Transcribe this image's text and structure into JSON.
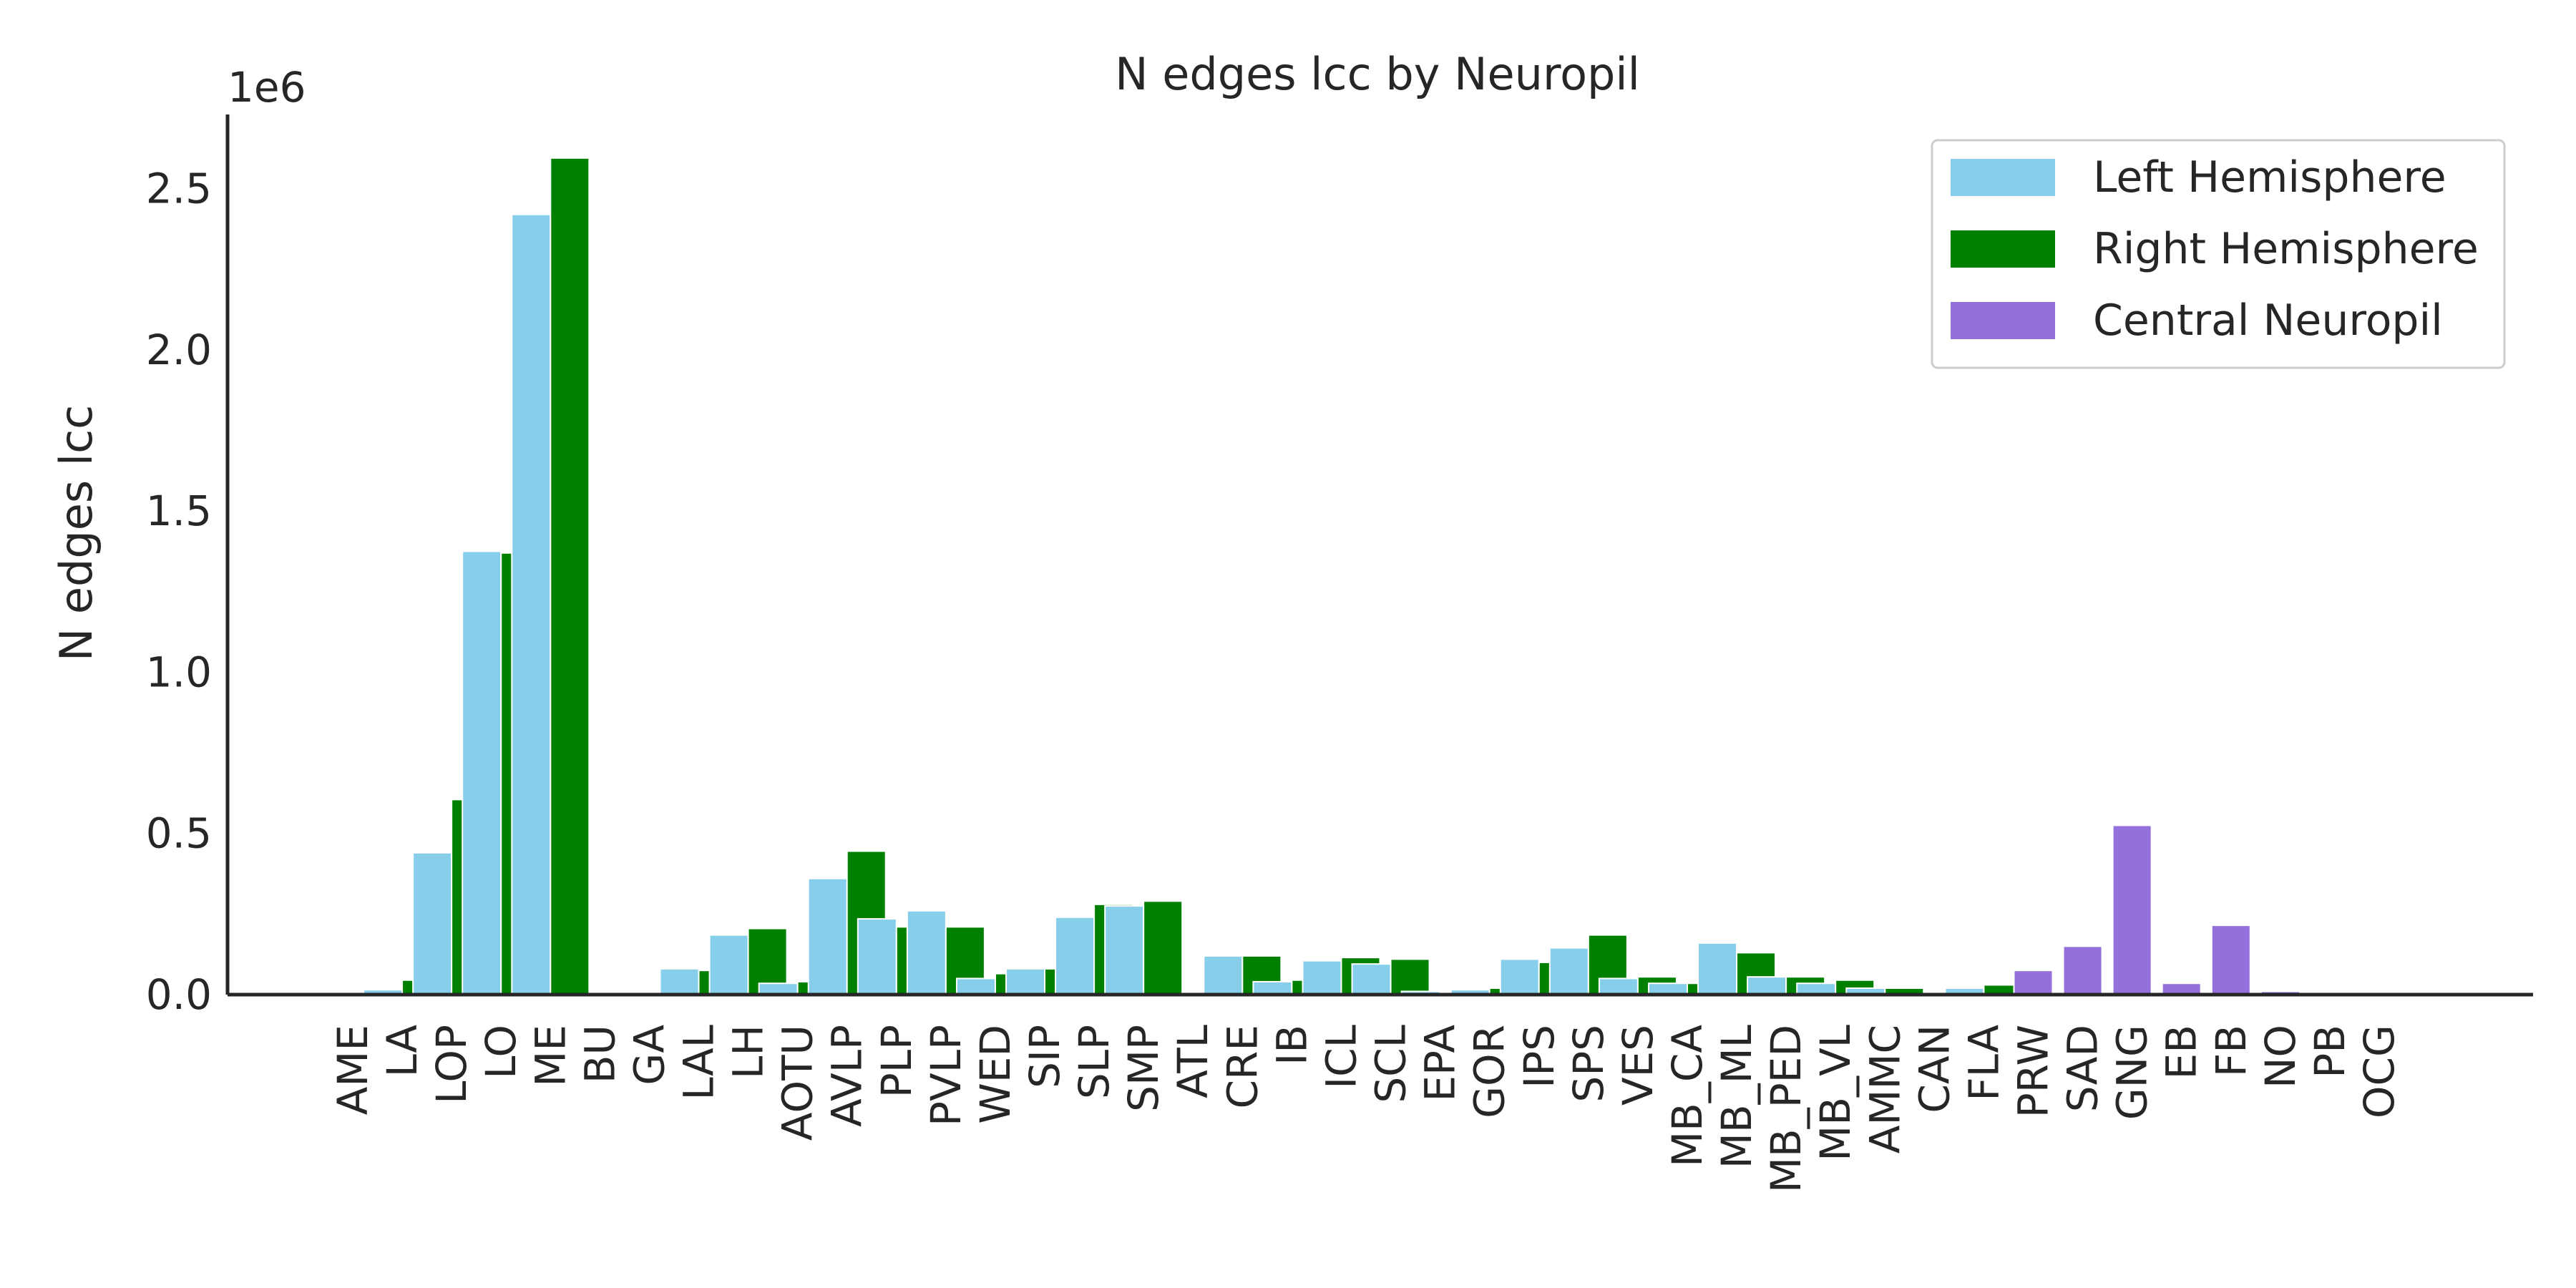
{
  "chart_data": {
    "type": "bar",
    "title": "N edges lcc by Neuropil",
    "xlabel": "",
    "ylabel": "N edges lcc",
    "y_offset_label": "1e6",
    "y_tick_values": [
      0,
      500000,
      1000000,
      1500000,
      2000000,
      2500000
    ],
    "y_tick_labels": [
      "0.0",
      "0.5",
      "1.0",
      "1.5",
      "2.0",
      "2.5"
    ],
    "ylim": [
      0,
      2730000
    ],
    "grid": false,
    "legend_position": "top-right",
    "categories": [
      "AME",
      "LA",
      "LOP",
      "LO",
      "ME",
      "BU",
      "GA",
      "LAL",
      "LH",
      "AOTU",
      "AVLP",
      "PLP",
      "PVLP",
      "WED",
      "SIP",
      "SLP",
      "SMP",
      "ATL",
      "CRE",
      "IB",
      "ICL",
      "SCL",
      "EPA",
      "GOR",
      "IPS",
      "SPS",
      "VES",
      "MB_CA",
      "MB_ML",
      "MB_PED",
      "MB_VL",
      "AMMC",
      "CAN",
      "FLA",
      "PRW",
      "SAD",
      "GNG",
      "EB",
      "FB",
      "NO",
      "PB",
      "OCG"
    ],
    "series": [
      {
        "name": "Left Hemisphere",
        "color": "#87ceeb",
        "values": [
          1000,
          15000,
          440000,
          1375000,
          2420000,
          1000,
          1000,
          80000,
          185000,
          35000,
          360000,
          235000,
          260000,
          50000,
          80000,
          240000,
          275000,
          1000,
          120000,
          40000,
          105000,
          95000,
          10000,
          15000,
          110000,
          145000,
          50000,
          35000,
          160000,
          55000,
          35000,
          20000,
          3000,
          20000,
          null,
          null,
          null,
          null,
          null,
          null,
          null,
          null
        ]
      },
      {
        "name": "Right Hemisphere",
        "color": "#008000",
        "values": [
          1000,
          45000,
          605000,
          1370000,
          2595000,
          1000,
          1000,
          75000,
          205000,
          40000,
          445000,
          210000,
          210000,
          65000,
          80000,
          280000,
          290000,
          1000,
          120000,
          45000,
          115000,
          110000,
          5000,
          20000,
          100000,
          185000,
          55000,
          35000,
          130000,
          55000,
          45000,
          20000,
          3000,
          30000,
          null,
          null,
          null,
          null,
          null,
          null,
          null,
          null
        ]
      },
      {
        "name": "Central Neuropil",
        "color": "#9370db",
        "values": [
          null,
          null,
          null,
          null,
          null,
          null,
          null,
          null,
          null,
          null,
          null,
          null,
          null,
          null,
          null,
          null,
          null,
          null,
          null,
          null,
          null,
          null,
          null,
          null,
          null,
          null,
          null,
          null,
          null,
          null,
          null,
          null,
          null,
          null,
          75000,
          150000,
          525000,
          35000,
          215000,
          10000,
          5000,
          3000
        ]
      }
    ]
  }
}
